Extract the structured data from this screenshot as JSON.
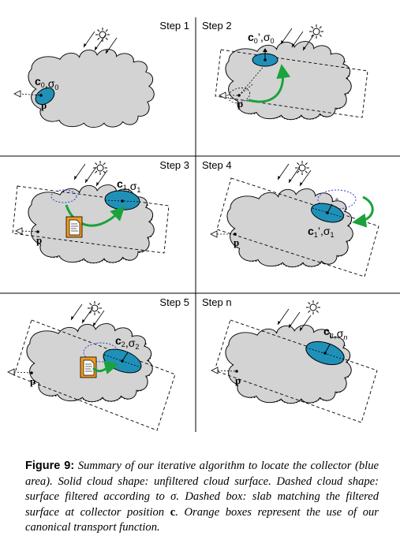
{
  "panels": [
    {
      "step": "Step 1",
      "label_base": "c",
      "label_sub": "0",
      "label_prime": "",
      "label_sigma_sub": "0",
      "point": "p"
    },
    {
      "step": "Step 2",
      "label_base": "c",
      "label_sub": "0",
      "label_prime": "’",
      "label_sigma_sub": "0",
      "point": "p"
    },
    {
      "step": "Step 3",
      "label_base": "c",
      "label_sub": "1",
      "label_prime": "",
      "label_sigma_sub": "1",
      "point": "p"
    },
    {
      "step": "Step 4",
      "label_base": "c",
      "label_sub": "1",
      "label_prime": "’",
      "label_sigma_sub": "1",
      "point": "p"
    },
    {
      "step": "Step 5",
      "label_base": "c",
      "label_sub": "2",
      "label_prime": "",
      "label_sigma_sub": "2",
      "point": "p"
    },
    {
      "step": "Step n",
      "label_base": "c",
      "label_sub": "n",
      "label_prime": "",
      "label_sigma_sub": "n",
      "point": "p"
    }
  ],
  "sigma_symbol": "σ",
  "caption": {
    "lead": "Figure 9:",
    "text1": " Summary of our iterative algorithm to locate the collector (blue area). Solid cloud shape: unfiltered cloud surface. Dashed cloud shape: surface filtered according to σ. Dashed box: slab matching the filtered surface at collector position ",
    "c_symbol": "c",
    "text2": ". Orange boxes represent the use of our canonical transport function."
  },
  "colors": {
    "cloud_fill": "#d3d3d3",
    "collector": "#1f91b8",
    "arrow_green": "#1aa23c",
    "doc_orange": "#f39a1e",
    "dotted_blue": "#2d3fd0"
  }
}
